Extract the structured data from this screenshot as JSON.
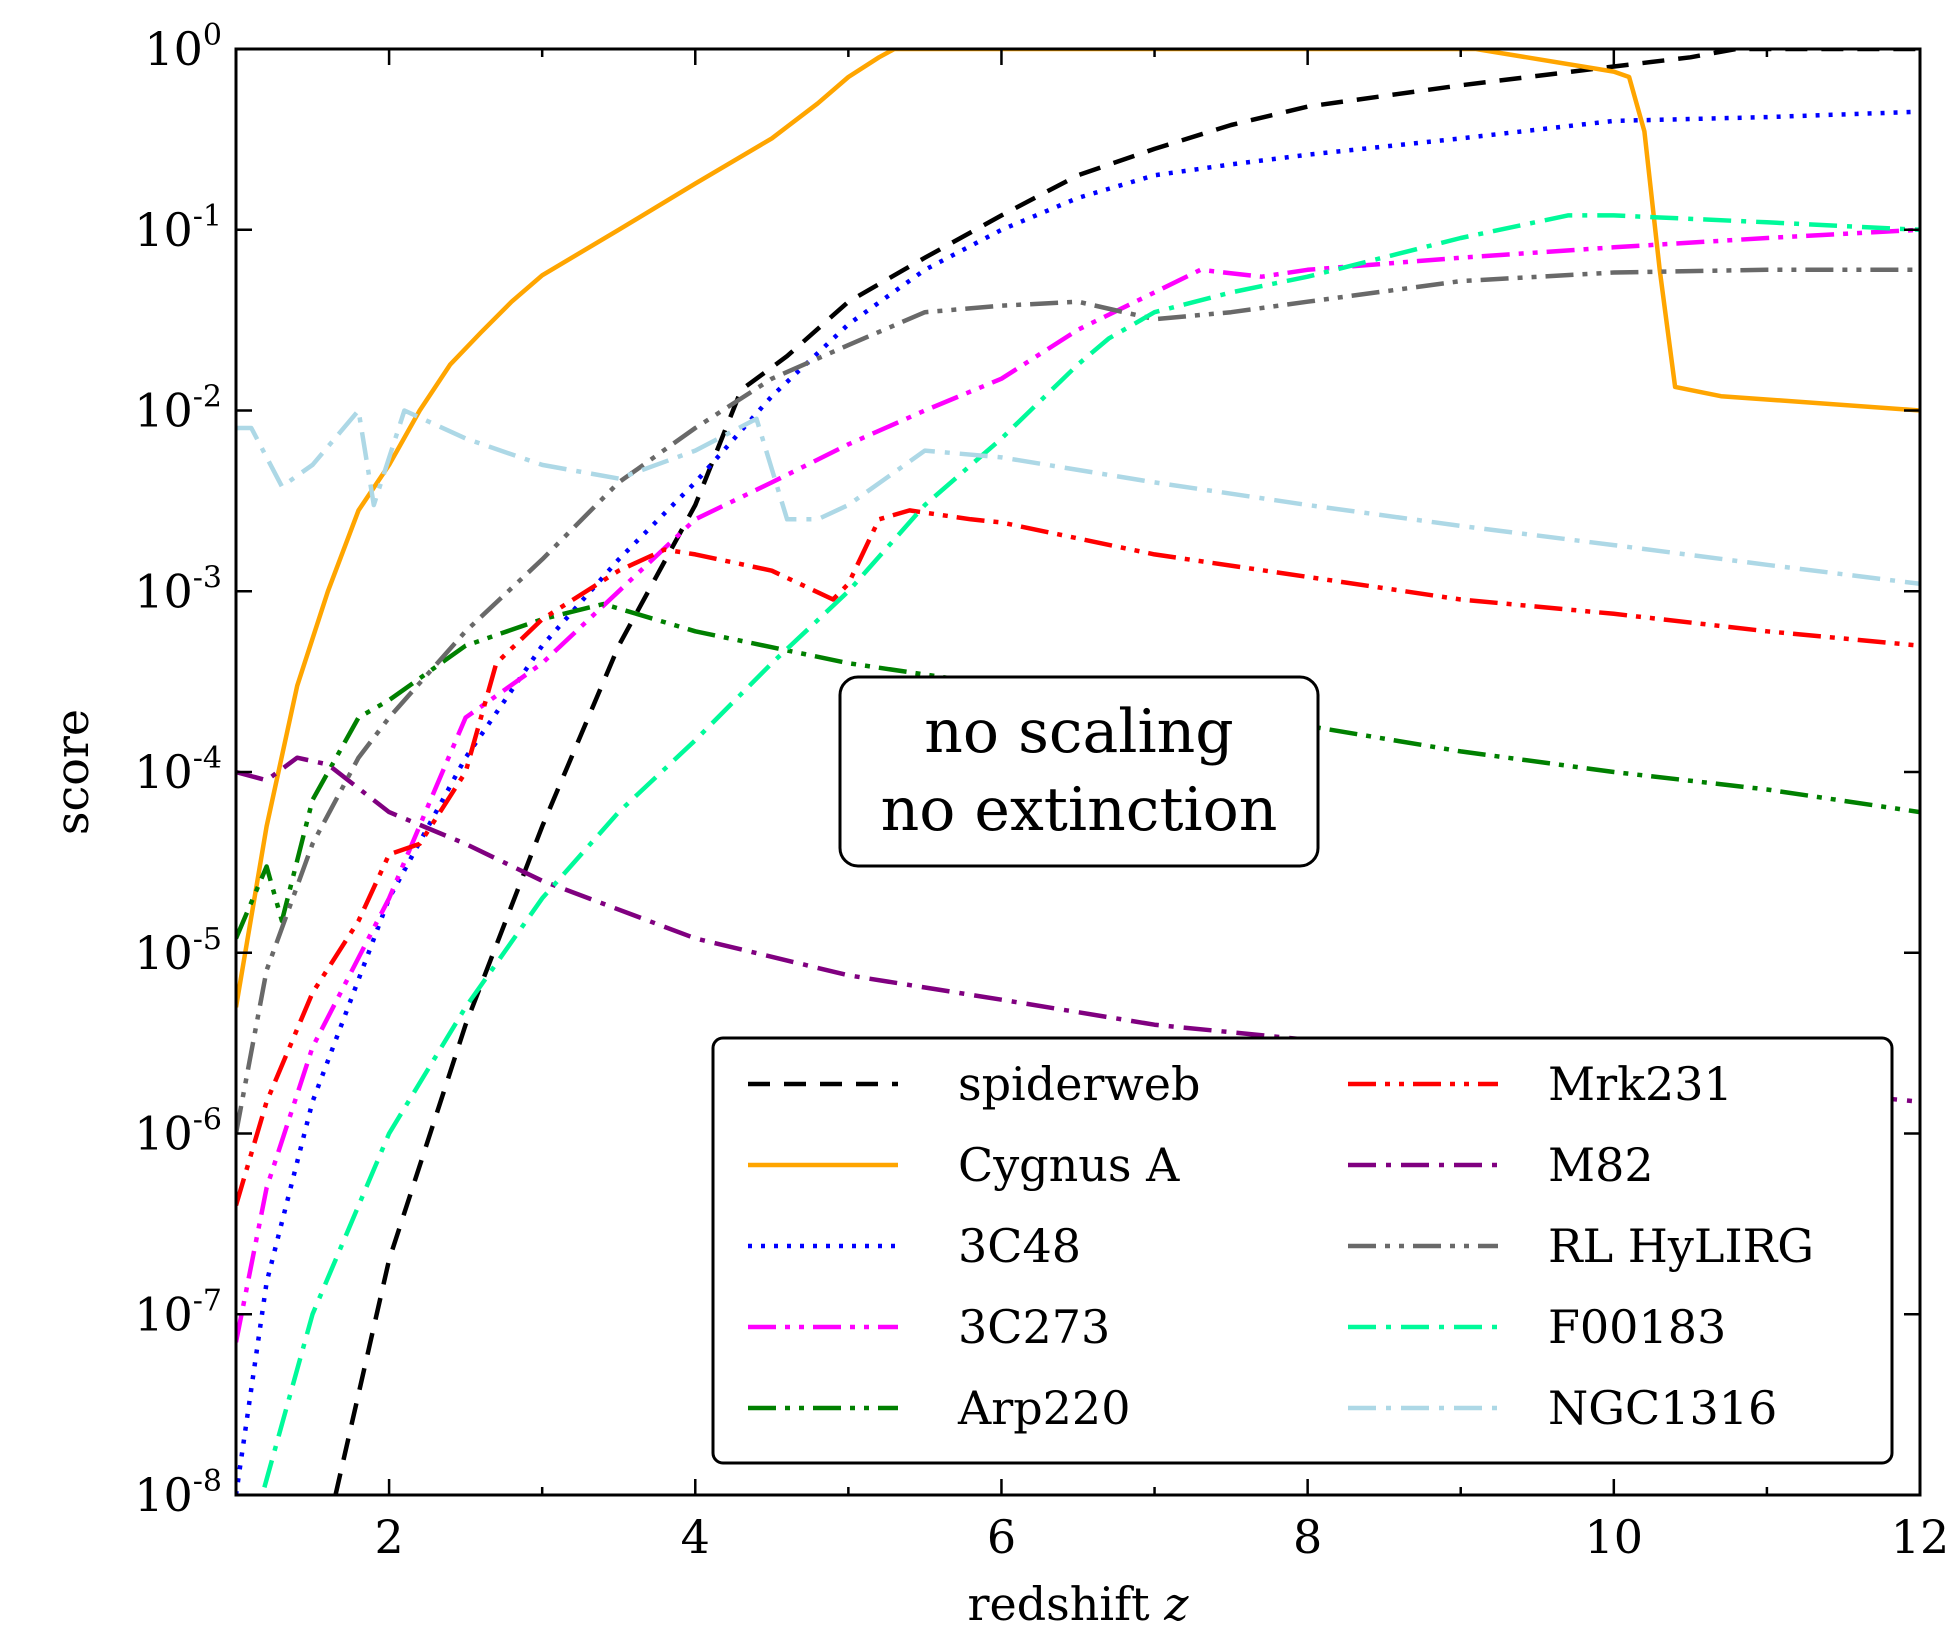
{
  "chart_data": {
    "type": "line",
    "xlabel": "redshift",
    "xlabel_var": "z",
    "ylabel": "score",
    "xlim": [
      1,
      12
    ],
    "ylim": [
      1e-08,
      1
    ],
    "yscale": "log",
    "grid": false,
    "legend_placement": "lower-right",
    "x_ticks": [
      2,
      4,
      6,
      8,
      10,
      12
    ],
    "y_ticks": [
      {
        "value": 1,
        "exp": "0"
      },
      {
        "value": 0.1,
        "exp": "-1"
      },
      {
        "value": 0.01,
        "exp": "-2"
      },
      {
        "value": 0.001,
        "exp": "-3"
      },
      {
        "value": 0.0001,
        "exp": "-4"
      },
      {
        "value": 1e-05,
        "exp": "-5"
      },
      {
        "value": 1e-06,
        "exp": "-6"
      },
      {
        "value": 1e-07,
        "exp": "-7"
      },
      {
        "value": 1e-08,
        "exp": "-8"
      }
    ],
    "annotation": [
      "no scaling",
      "no extinction"
    ],
    "series": [
      {
        "name": "spiderweb",
        "color": "#000000",
        "dash": "dashed",
        "points": [
          [
            1.65,
            1e-08
          ],
          [
            2.0,
            2e-07
          ],
          [
            2.5,
            4e-06
          ],
          [
            3.0,
            5e-05
          ],
          [
            3.5,
            0.0005
          ],
          [
            4.0,
            0.003
          ],
          [
            4.3,
            0.013
          ],
          [
            4.6,
            0.02
          ],
          [
            5.0,
            0.04
          ],
          [
            5.5,
            0.07
          ],
          [
            6.0,
            0.12
          ],
          [
            6.5,
            0.2
          ],
          [
            7.0,
            0.28
          ],
          [
            7.5,
            0.38
          ],
          [
            8.0,
            0.48
          ],
          [
            8.5,
            0.55
          ],
          [
            9.0,
            0.63
          ],
          [
            10.0,
            0.8
          ],
          [
            10.5,
            0.9
          ],
          [
            10.8,
            1
          ],
          [
            12,
            1
          ]
        ]
      },
      {
        "name": "Cygnus A",
        "color": "#ffa500",
        "dash": "solid",
        "points": [
          [
            1.0,
            5e-06
          ],
          [
            1.2,
            5e-05
          ],
          [
            1.4,
            0.0003
          ],
          [
            1.6,
            0.001
          ],
          [
            1.8,
            0.0028
          ],
          [
            2.0,
            0.005
          ],
          [
            2.2,
            0.01
          ],
          [
            2.4,
            0.018
          ],
          [
            2.6,
            0.027
          ],
          [
            2.8,
            0.04
          ],
          [
            3.0,
            0.056
          ],
          [
            3.5,
            0.1
          ],
          [
            4.0,
            0.18
          ],
          [
            4.5,
            0.32
          ],
          [
            4.8,
            0.5
          ],
          [
            5.0,
            0.7
          ],
          [
            5.2,
            0.9
          ],
          [
            5.3,
            1
          ],
          [
            9.1,
            1
          ],
          [
            10.0,
            0.75
          ],
          [
            10.1,
            0.7
          ],
          [
            10.2,
            0.35
          ],
          [
            10.3,
            0.06
          ],
          [
            10.4,
            0.0135
          ],
          [
            10.7,
            0.012
          ],
          [
            12.0,
            0.01
          ]
        ]
      },
      {
        "name": "3C48",
        "color": "#0000ff",
        "dash": "dotted",
        "points": [
          [
            1.0,
            1e-08
          ],
          [
            1.2,
            1.5e-07
          ],
          [
            1.5,
            1.5e-06
          ],
          [
            2.0,
            2e-05
          ],
          [
            2.5,
            0.00012
          ],
          [
            3.0,
            0.0005
          ],
          [
            3.5,
            0.0015
          ],
          [
            4.0,
            0.004
          ],
          [
            4.5,
            0.012
          ],
          [
            5.0,
            0.03
          ],
          [
            5.5,
            0.06
          ],
          [
            6.0,
            0.1
          ],
          [
            6.5,
            0.15
          ],
          [
            7.0,
            0.2
          ],
          [
            7.5,
            0.23
          ],
          [
            8.0,
            0.26
          ],
          [
            9.0,
            0.32
          ],
          [
            10.0,
            0.4
          ],
          [
            11.0,
            0.42
          ],
          [
            12.0,
            0.45
          ]
        ]
      },
      {
        "name": "3C273",
        "color": "#ff00ff",
        "dash": "dash-dot-dot",
        "points": [
          [
            1.0,
            7e-08
          ],
          [
            1.2,
            5e-07
          ],
          [
            1.5,
            3e-06
          ],
          [
            2.0,
            2e-05
          ],
          [
            2.3,
            8e-05
          ],
          [
            2.5,
            0.0002
          ],
          [
            3.0,
            0.0004
          ],
          [
            3.5,
            0.001
          ],
          [
            4.0,
            0.0025
          ],
          [
            4.5,
            0.004
          ],
          [
            5.0,
            0.0065
          ],
          [
            5.5,
            0.01
          ],
          [
            6.0,
            0.015
          ],
          [
            6.5,
            0.028
          ],
          [
            7.0,
            0.045
          ],
          [
            7.3,
            0.06
          ],
          [
            7.7,
            0.055
          ],
          [
            8.0,
            0.06
          ],
          [
            9.0,
            0.07
          ],
          [
            10.0,
            0.08
          ],
          [
            11.0,
            0.09
          ],
          [
            12.0,
            0.1
          ]
        ]
      },
      {
        "name": "Arp220",
        "color": "#008000",
        "dash": "dash-dot-dot",
        "points": [
          [
            1.0,
            1.2e-05
          ],
          [
            1.2,
            3e-05
          ],
          [
            1.3,
            1.5e-05
          ],
          [
            1.5,
            7e-05
          ],
          [
            1.8,
            0.0002
          ],
          [
            2.0,
            0.00025
          ],
          [
            2.5,
            0.0005
          ],
          [
            3.0,
            0.0007
          ],
          [
            3.4,
            0.00085
          ],
          [
            4.0,
            0.0006
          ],
          [
            5.0,
            0.0004
          ],
          [
            6.0,
            0.0003
          ],
          [
            7.0,
            0.00023
          ],
          [
            8.0,
            0.00018
          ],
          [
            9.0,
            0.00013
          ],
          [
            10.0,
            0.0001
          ],
          [
            11.0,
            8e-05
          ],
          [
            12.0,
            6e-05
          ]
        ]
      },
      {
        "name": "Mrk231",
        "color": "#ff0000",
        "dash": "dash-dot-dot",
        "points": [
          [
            1.0,
            4e-07
          ],
          [
            1.2,
            1.5e-06
          ],
          [
            1.5,
            6e-06
          ],
          [
            1.8,
            1.5e-05
          ],
          [
            2.0,
            3.5e-05
          ],
          [
            2.2,
            4e-05
          ],
          [
            2.5,
            0.0001
          ],
          [
            2.7,
            0.0004
          ],
          [
            3.0,
            0.0007
          ],
          [
            3.5,
            0.0013
          ],
          [
            3.8,
            0.0017
          ],
          [
            4.0,
            0.0016
          ],
          [
            4.5,
            0.0013
          ],
          [
            4.9,
            0.0009
          ],
          [
            5.0,
            0.0011
          ],
          [
            5.2,
            0.0025
          ],
          [
            5.4,
            0.0028
          ],
          [
            5.8,
            0.0025
          ],
          [
            6.0,
            0.0024
          ],
          [
            7.0,
            0.0016
          ],
          [
            8.0,
            0.0012
          ],
          [
            9.0,
            0.0009
          ],
          [
            10.0,
            0.00075
          ],
          [
            11.0,
            0.0006
          ],
          [
            12.0,
            0.0005
          ]
        ]
      },
      {
        "name": "M82",
        "color": "#800080",
        "dash": "dash-dot",
        "points": [
          [
            1.0,
            0.0001
          ],
          [
            1.2,
            9e-05
          ],
          [
            1.4,
            0.00012
          ],
          [
            1.6,
            0.00011
          ],
          [
            2.0,
            6e-05
          ],
          [
            2.5,
            4e-05
          ],
          [
            3.0,
            2.5e-05
          ],
          [
            4.0,
            1.2e-05
          ],
          [
            5.0,
            7.5e-06
          ],
          [
            6.0,
            5.5e-06
          ],
          [
            7.0,
            4e-06
          ],
          [
            8.0,
            3.3e-06
          ],
          [
            9.0,
            2.7e-06
          ],
          [
            10.0,
            2.2e-06
          ],
          [
            11.0,
            1.8e-06
          ],
          [
            12.0,
            1.5e-06
          ]
        ]
      },
      {
        "name": "RL HyLIRG",
        "color": "#696969",
        "dash": "dash-dot-dot",
        "points": [
          [
            1.0,
            1e-06
          ],
          [
            1.2,
            8e-06
          ],
          [
            1.5,
            4e-05
          ],
          [
            1.8,
            0.00012
          ],
          [
            2.0,
            0.0002
          ],
          [
            2.5,
            0.0006
          ],
          [
            3.0,
            0.0015
          ],
          [
            3.5,
            0.004
          ],
          [
            4.0,
            0.008
          ],
          [
            4.5,
            0.015
          ],
          [
            5.0,
            0.023
          ],
          [
            5.5,
            0.035
          ],
          [
            6.0,
            0.038
          ],
          [
            6.5,
            0.04
          ],
          [
            7.0,
            0.032
          ],
          [
            7.5,
            0.035
          ],
          [
            8.0,
            0.04
          ],
          [
            9.0,
            0.052
          ],
          [
            10.0,
            0.058
          ],
          [
            11.0,
            0.06
          ],
          [
            12.0,
            0.06
          ]
        ]
      },
      {
        "name": "F00183",
        "color": "#00fa9a",
        "dash": "dash-dot",
        "points": [
          [
            1.0,
            3e-09
          ],
          [
            1.5,
            1e-07
          ],
          [
            2.0,
            1e-06
          ],
          [
            2.5,
            5e-06
          ],
          [
            3.0,
            2e-05
          ],
          [
            3.5,
            6e-05
          ],
          [
            4.0,
            0.00015
          ],
          [
            4.5,
            0.0004
          ],
          [
            5.0,
            0.001
          ],
          [
            5.5,
            0.003
          ],
          [
            6.0,
            0.007
          ],
          [
            6.5,
            0.018
          ],
          [
            6.7,
            0.025
          ],
          [
            7.0,
            0.035
          ],
          [
            7.5,
            0.045
          ],
          [
            8.0,
            0.055
          ],
          [
            9.0,
            0.09
          ],
          [
            9.7,
            0.12
          ],
          [
            10.0,
            0.12
          ],
          [
            11.0,
            0.11
          ],
          [
            12.0,
            0.1
          ]
        ]
      },
      {
        "name": "NGC1316",
        "color": "#add8e6",
        "dash": "dash-dot",
        "points": [
          [
            1.0,
            0.008
          ],
          [
            1.1,
            0.008
          ],
          [
            1.3,
            0.0038
          ],
          [
            1.5,
            0.005
          ],
          [
            1.8,
            0.01
          ],
          [
            1.9,
            0.003
          ],
          [
            2.1,
            0.01
          ],
          [
            2.5,
            0.007
          ],
          [
            3.0,
            0.005
          ],
          [
            3.5,
            0.0042
          ],
          [
            4.0,
            0.006
          ],
          [
            4.4,
            0.009
          ],
          [
            4.6,
            0.0025
          ],
          [
            4.8,
            0.0025
          ],
          [
            5.0,
            0.003
          ],
          [
            5.5,
            0.006
          ],
          [
            6.0,
            0.0055
          ],
          [
            7.0,
            0.004
          ],
          [
            8.0,
            0.003
          ],
          [
            9.0,
            0.0023
          ],
          [
            10.0,
            0.0018
          ],
          [
            11.0,
            0.0014
          ],
          [
            12.0,
            0.0011
          ]
        ]
      }
    ]
  }
}
